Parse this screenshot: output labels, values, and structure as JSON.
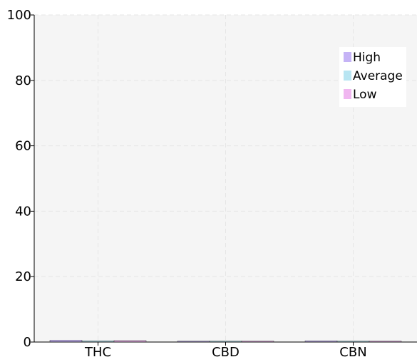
{
  "chart_data": {
    "type": "bar",
    "categories": [
      "THC",
      "CBD",
      "CBN"
    ],
    "series": [
      {
        "name": "High",
        "values": [
          0.6,
          0.2,
          0.4
        ],
        "color": "#c5b3f6"
      },
      {
        "name": "Average",
        "values": [
          0.4,
          0.2,
          0.3
        ],
        "color": "#b8e5f2"
      },
      {
        "name": "Low",
        "values": [
          0.5,
          0.2,
          0.3
        ],
        "color": "#f0b6f0"
      }
    ],
    "ylim": [
      0,
      100
    ],
    "yticks": [
      "0",
      "20",
      "40",
      "60",
      "80",
      "100"
    ],
    "grid": true,
    "legend_position": "top-right",
    "plot_background": "#f5f5f5",
    "grid_color": "#e6e6e6"
  }
}
